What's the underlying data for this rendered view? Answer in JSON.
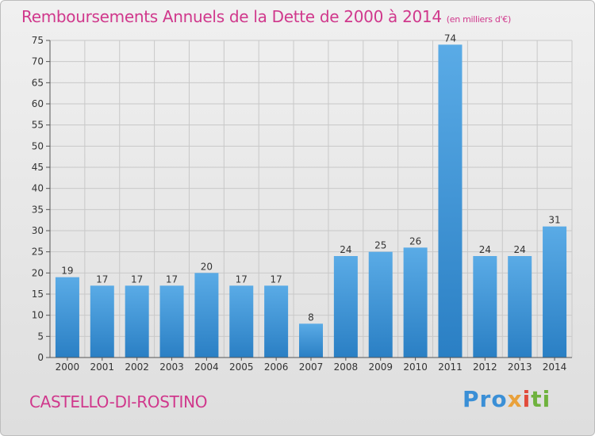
{
  "header": {
    "title": "Remboursements Annuels de la Dette de 2000 à 2014",
    "unit": "(en milliers d'€)"
  },
  "footer": {
    "commune": "CASTELLO-DI-ROSTINO",
    "logo": [
      "Pro",
      "x",
      "i",
      "ti"
    ]
  },
  "colors": {
    "title": "#d0388c",
    "bar_light": "#5aabe6",
    "bar_dark": "#2a7fc4"
  },
  "chart_data": {
    "type": "bar",
    "title": "Remboursements Annuels de la Dette de 2000 à 2014",
    "categories": [
      "2000",
      "2001",
      "2002",
      "2003",
      "2004",
      "2005",
      "2006",
      "2007",
      "2008",
      "2009",
      "2010",
      "2011",
      "2012",
      "2013",
      "2014"
    ],
    "values": [
      19,
      17,
      17,
      17,
      20,
      17,
      17,
      8,
      24,
      25,
      26,
      74,
      24,
      24,
      31
    ],
    "ylim": [
      0,
      75
    ],
    "yticks": [
      0,
      5,
      10,
      15,
      20,
      25,
      30,
      35,
      40,
      45,
      50,
      55,
      60,
      65,
      70,
      75
    ],
    "grid": true,
    "data_labels": true
  }
}
